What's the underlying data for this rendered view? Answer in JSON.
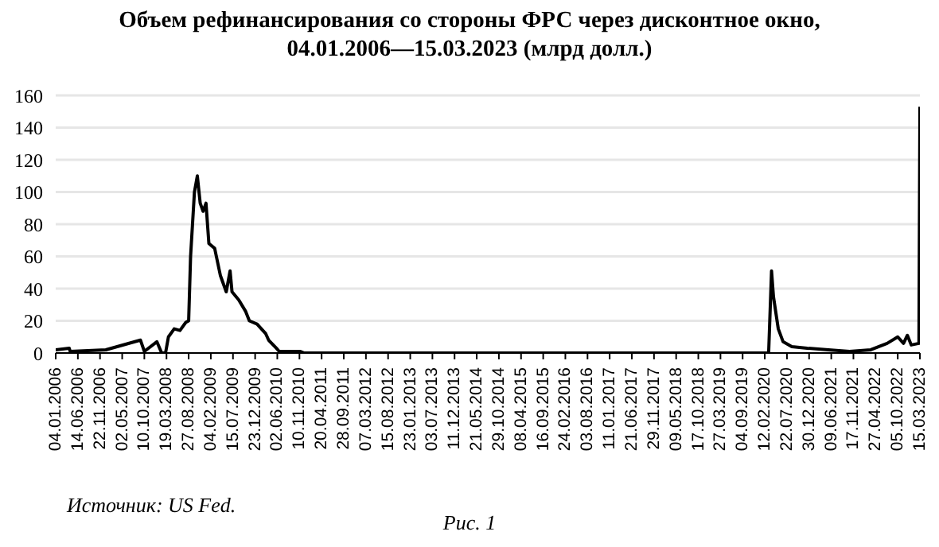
{
  "chart_data": {
    "type": "line",
    "title": "Объем рефинансирования со стороны ФРС через дисконтное окно,\n04.01.2006—15.03.2023 (млрд долл.)",
    "x": [
      "2006-01-04",
      "2006-04-12",
      "2006-04-19",
      "2007-01-03",
      "2007-09-12",
      "2007-10-10",
      "2008-01-09",
      "2008-02-13",
      "2008-03-12",
      "2008-04-02",
      "2008-05-14",
      "2008-06-25",
      "2008-08-06",
      "2008-08-27",
      "2008-09-10",
      "2008-10-08",
      "2008-10-29",
      "2008-11-19",
      "2008-12-10",
      "2008-12-31",
      "2009-01-21",
      "2009-03-04",
      "2009-04-15",
      "2009-05-27",
      "2009-06-24",
      "2009-07-08",
      "2009-08-26",
      "2009-10-14",
      "2009-11-11",
      "2010-01-06",
      "2010-03-10",
      "2010-03-31",
      "2010-05-26",
      "2010-06-16",
      "2010-11-17",
      "2010-12-15",
      "2020-03-11",
      "2020-04-01",
      "2020-04-15",
      "2020-05-20",
      "2020-06-24",
      "2020-08-26",
      "2020-12-16",
      "2021-05-19",
      "2021-10-20",
      "2022-03-23",
      "2022-07-20",
      "2022-10-05",
      "2022-11-16",
      "2022-12-14",
      "2023-01-11",
      "2023-03-08",
      "2023-03-15"
    ],
    "series": [
      {
        "color": "#000000",
        "values": [
          2,
          3,
          1,
          2,
          8,
          1,
          7,
          0,
          0,
          10,
          15,
          14,
          19,
          20,
          60,
          100,
          110,
          93,
          88,
          93,
          68,
          65,
          48,
          38,
          51,
          38,
          33,
          26,
          20,
          18,
          12,
          8,
          3,
          1,
          1,
          0,
          0,
          51,
          35,
          15,
          7,
          4,
          3,
          2,
          1,
          2,
          6,
          10,
          6,
          11,
          5,
          6,
          153
        ]
      }
    ],
    "xlim": [
      "2006-01-04",
      "2023-03-15"
    ],
    "xticks": [
      {
        "value": "2006-01-04",
        "label": "04.01.2006"
      },
      {
        "value": "2006-06-14",
        "label": "14.06.2006"
      },
      {
        "value": "2006-11-22",
        "label": "22.11.2006"
      },
      {
        "value": "2007-05-02",
        "label": "02.05.2007"
      },
      {
        "value": "2007-10-10",
        "label": "10.10.2007"
      },
      {
        "value": "2008-03-19",
        "label": "19.03.2008"
      },
      {
        "value": "2008-08-27",
        "label": "27.08.2008"
      },
      {
        "value": "2009-02-04",
        "label": "04.02.2009"
      },
      {
        "value": "2009-07-15",
        "label": "15.07.2009"
      },
      {
        "value": "2009-12-23",
        "label": "23.12.2009"
      },
      {
        "value": "2010-06-02",
        "label": "02.06.2010"
      },
      {
        "value": "2010-11-10",
        "label": "10.11.2010"
      },
      {
        "value": "2011-04-20",
        "label": "20.04.2011"
      },
      {
        "value": "2011-09-28",
        "label": "28.09.2011"
      },
      {
        "value": "2012-03-07",
        "label": "07.03.2012"
      },
      {
        "value": "2012-08-15",
        "label": "15.08.2012"
      },
      {
        "value": "2013-01-23",
        "label": "23.01.2013"
      },
      {
        "value": "2013-07-03",
        "label": "03.07.2013"
      },
      {
        "value": "2013-12-11",
        "label": "11.12.2013"
      },
      {
        "value": "2014-05-21",
        "label": "21.05.2014"
      },
      {
        "value": "2014-10-29",
        "label": "29.10.2014"
      },
      {
        "value": "2015-04-08",
        "label": "08.04.2015"
      },
      {
        "value": "2015-09-16",
        "label": "16.09.2015"
      },
      {
        "value": "2016-02-24",
        "label": "24.02.2016"
      },
      {
        "value": "2016-08-03",
        "label": "03.08.2016"
      },
      {
        "value": "2017-01-11",
        "label": "11.01.2017"
      },
      {
        "value": "2017-06-21",
        "label": "21.06.2017"
      },
      {
        "value": "2017-11-29",
        "label": "29.11.2017"
      },
      {
        "value": "2018-05-09",
        "label": "09.05.2018"
      },
      {
        "value": "2018-10-17",
        "label": "17.10.2018"
      },
      {
        "value": "2019-03-27",
        "label": "27.03.2019"
      },
      {
        "value": "2019-09-04",
        "label": "04.09.2019"
      },
      {
        "value": "2020-02-12",
        "label": "12.02.2020"
      },
      {
        "value": "2020-07-22",
        "label": "22.07.2020"
      },
      {
        "value": "2020-12-30",
        "label": "30.12.2020"
      },
      {
        "value": "2021-06-09",
        "label": "09.06.2021"
      },
      {
        "value": "2021-11-17",
        "label": "17.11.2021"
      },
      {
        "value": "2022-04-27",
        "label": "27.04.2022"
      },
      {
        "value": "2022-10-05",
        "label": "05.10.2022"
      },
      {
        "value": "2023-03-15",
        "label": "15.03.2023"
      }
    ],
    "ylim": [
      0,
      160
    ],
    "yticks": [
      0,
      20,
      40,
      60,
      80,
      100,
      120,
      140,
      160
    ],
    "grid": "y",
    "marker": "none",
    "line_style": "solid",
    "annotations": [
      "Источник: US Fed.",
      "Рис. 1"
    ]
  }
}
